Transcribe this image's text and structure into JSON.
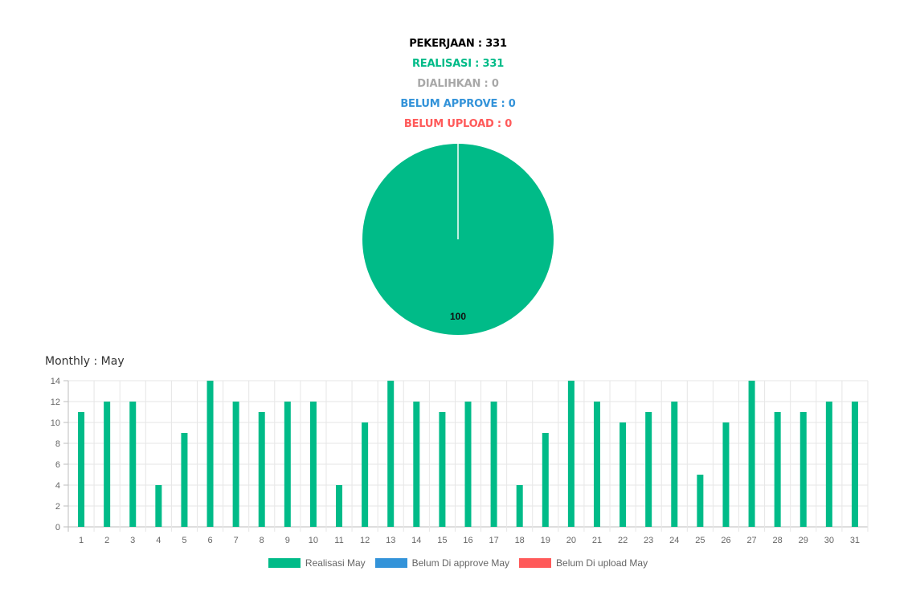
{
  "summary": {
    "pekerjaan": "PEKERJAAN : 331",
    "realisasi": "REALISASI : 331",
    "dialihkan": "DIALIHKAN : 0",
    "belum_approve": "BELUM APPROVE : 0",
    "belum_upload": "BELUM UPLOAD : 0"
  },
  "colors": {
    "black": "#000000",
    "realisasi": "#00bb88",
    "dialihkan": "#a8a8a8",
    "belum_approve": "#3393d9",
    "belum_upload": "#ff5a5a",
    "grid": "#e6e6e6",
    "tick": "#666666"
  },
  "monthly_title": "Monthly : May",
  "chart_data": [
    {
      "type": "pie",
      "categories": [
        "Realisasi",
        "Dialihkan",
        "Belum Approve",
        "Belum Upload"
      ],
      "values": [
        100,
        0,
        0,
        0
      ],
      "data_labels": [
        "100"
      ]
    },
    {
      "type": "bar",
      "categories": [
        "1",
        "2",
        "3",
        "4",
        "5",
        "6",
        "7",
        "8",
        "9",
        "10",
        "11",
        "12",
        "13",
        "14",
        "15",
        "16",
        "17",
        "18",
        "19",
        "20",
        "21",
        "22",
        "23",
        "24",
        "25",
        "26",
        "27",
        "28",
        "29",
        "30",
        "31"
      ],
      "series": [
        {
          "name": "Realisasi May",
          "values": [
            11,
            12,
            12,
            4,
            9,
            14,
            12,
            11,
            12,
            12,
            4,
            10,
            14,
            12,
            11,
            12,
            12,
            4,
            9,
            14,
            12,
            10,
            11,
            12,
            5,
            10,
            14,
            11,
            11,
            12,
            12
          ]
        },
        {
          "name": "Belum Di approve May",
          "values": [
            0,
            0,
            0,
            0,
            0,
            0,
            0,
            0,
            0,
            0,
            0,
            0,
            0,
            0,
            0,
            0,
            0,
            0,
            0,
            0,
            0,
            0,
            0,
            0,
            0,
            0,
            0,
            0,
            0,
            0,
            0
          ]
        },
        {
          "name": "Belum Di upload May",
          "values": [
            0,
            0,
            0,
            0,
            0,
            0,
            0,
            0,
            0,
            0,
            0,
            0,
            0,
            0,
            0,
            0,
            0,
            0,
            0,
            0,
            0,
            0,
            0,
            0,
            0,
            0,
            0,
            0,
            0,
            0,
            0
          ]
        }
      ],
      "ylim": [
        0,
        14
      ],
      "yticks": [
        "0",
        "2",
        "4",
        "6",
        "8",
        "10",
        "12",
        "14"
      ],
      "grid": true,
      "legend": "bottom"
    }
  ]
}
